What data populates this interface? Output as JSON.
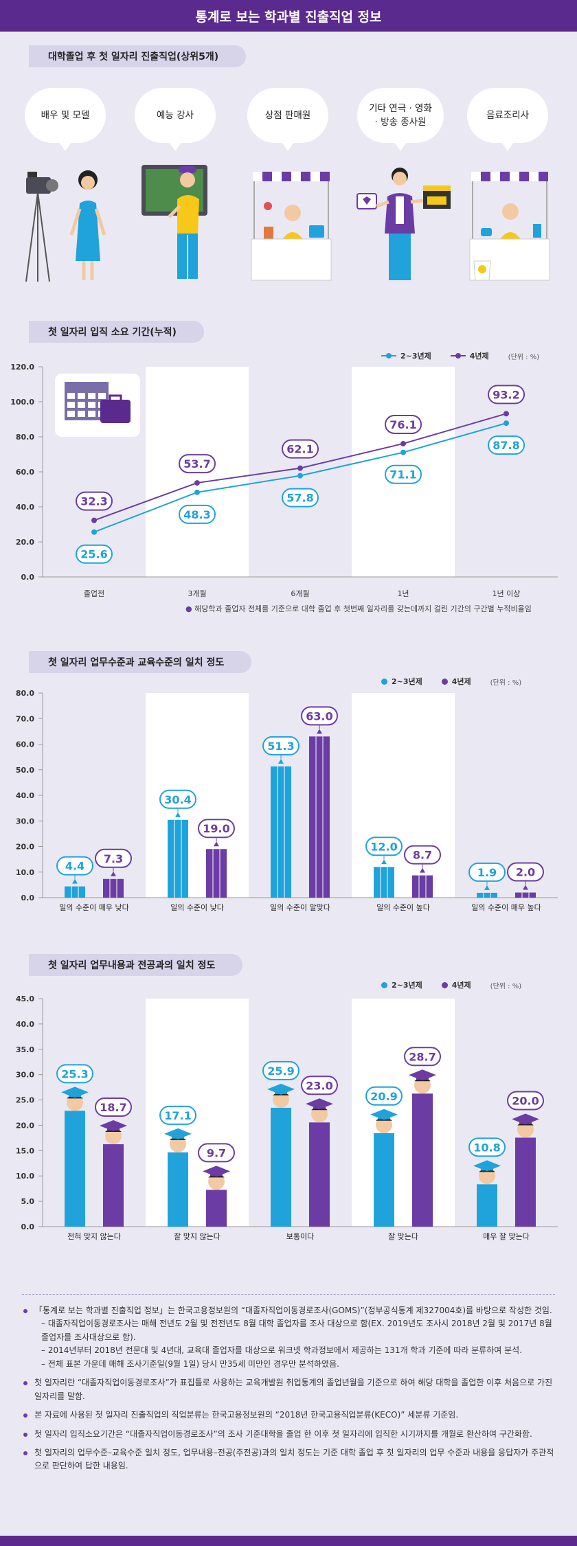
{
  "header": {
    "title": "통계로 보는 학과별 진출직업 정보"
  },
  "legend": {
    "series1": "2~3년제",
    "series2": "4년제",
    "unit": "(단위 : %)"
  },
  "colors": {
    "s1": "#1fa3da",
    "s2": "#6b3ca4",
    "bg": "#eae9f3",
    "band": "#ffffff",
    "accent": "#5b2a8f"
  },
  "section1": {
    "title": "대학졸업 후 첫 일자리 진출직업(상위5개)",
    "jobs": [
      {
        "label": "배우 및 모델",
        "icon": "actress-camera-icon"
      },
      {
        "label": "예능 강사",
        "icon": "teacher-board-icon"
      },
      {
        "label": "상점 판매원",
        "icon": "shop-clerk-icon"
      },
      {
        "label": "기타 연극 · 영화 · 방송 종사원",
        "icon": "broadcast-worker-icon"
      },
      {
        "label": "음료조리사",
        "icon": "barista-icon"
      }
    ]
  },
  "section2": {
    "title": "첫 일자리 입직 소요 기간(누적)",
    "note": "해당학과 졸업자 전체를 기준으로 대학 졸업 후 첫번째 일자리를 갖는데까지 걸린 기간의 구간별 누적비율임",
    "icon": "calendar-briefcase-icon"
  },
  "section3": {
    "title": "첫 일자리 업무수준과 교육수준의 일치 정도"
  },
  "section4": {
    "title": "첫 일자리 업무내용과 전공과의 일치 정도"
  },
  "chart_data": [
    {
      "type": "line",
      "categories": [
        "졸업전",
        "3개월",
        "6개월",
        "1년",
        "1년 이상"
      ],
      "series": [
        {
          "name": "2~3년제",
          "values": [
            25.6,
            48.3,
            57.8,
            71.1,
            87.8
          ]
        },
        {
          "name": "4년제",
          "values": [
            32.3,
            53.7,
            62.1,
            76.1,
            93.2
          ]
        }
      ],
      "yticks": [
        "0.0",
        "20.0",
        "40.0",
        "60.0",
        "80.0",
        "100.0",
        "120.0"
      ],
      "ylim": [
        0,
        120
      ],
      "legend": "top-right"
    },
    {
      "type": "bar",
      "categories": [
        "일의 수준이 매우 낮다",
        "일의 수준이 낮다",
        "일의 수준이 알맞다",
        "일의 수준이 높다",
        "일의 수준이 매우 높다"
      ],
      "series": [
        {
          "name": "2~3년제",
          "values": [
            4.4,
            30.4,
            51.3,
            12.0,
            1.9
          ]
        },
        {
          "name": "4년제",
          "values": [
            7.3,
            19.0,
            63.0,
            8.7,
            2.0
          ]
        }
      ],
      "yticks": [
        "0.0",
        "10.0",
        "20.0",
        "30.0",
        "40.0",
        "50.0",
        "60.0",
        "70.0",
        "80.0"
      ],
      "ylim": [
        0,
        80
      ],
      "legend": "top-right"
    },
    {
      "type": "bar",
      "categories": [
        "전혀 맞지 않는다",
        "잘 맞지 않는다",
        "보통이다",
        "잘 맞는다",
        "매우 잘 맞는다"
      ],
      "series": [
        {
          "name": "2~3년제",
          "values": [
            25.3,
            17.1,
            25.9,
            20.9,
            10.8
          ]
        },
        {
          "name": "4년제",
          "values": [
            18.7,
            9.7,
            23.0,
            28.7,
            20.0
          ]
        }
      ],
      "yticks": [
        "0.0",
        "5.0",
        "10.0",
        "15.0",
        "20.0",
        "25.0",
        "30.0",
        "35.0",
        "40.0",
        "45.0"
      ],
      "ylim": [
        0,
        45
      ],
      "legend": "top-right"
    }
  ],
  "footer": {
    "items": [
      {
        "text": "「통계로 보는 학과별 진출직업 정보」는 한국고용정보원의 “대졸자직업이동경로조사(GOMS)”(정부공식통계 제327004호)를 바탕으로 작성한 것임.",
        "subs": [
          "– 대졸자직업이동경로조사는 매해 전년도 2월 및 전전년도 8월 대학 졸업자를 조사 대상으로 함(EX. 2019년도 조사시 2018년 2월 및 2017년 8월 졸업자를 조사대상으로 함).",
          "– 2014년부터 2018년 전문대 및 4년대, 교육대 졸업자를 대상으로 워크넷 학과정보에서 제공하는 131개 학과 기준에 따라 분류하여 분석.",
          "– 전체 표본 가운데 매해 조사기준일(9월 1일) 당시 만35세 미만인 경우만 분석하였음."
        ]
      },
      {
        "text": "첫 일자리란 “대졸자직업이동경로조사”가 표집틀로 사용하는 교육개발원 취업통계의 졸업년월을 기준으로 하여 해당 대학을 졸업한 이후 처음으로 가진 일자리를 말함.",
        "subs": []
      },
      {
        "text": "본 자료에 사용된 첫 일자리 진출직업의 직업분류는 한국고용정보원의 “2018년 한국고용직업분류(KECO)” 세분류 기준임.",
        "subs": []
      },
      {
        "text": "첫 일자리 입직소요기간은 “대졸자직업이동경로조사”의 조사 기준대학을 졸업 한 이후 첫 일자리에 입직한 시기까지를 개월로 환산하여 구간화함.",
        "subs": []
      },
      {
        "text": "첫 일자리의 업무수준–교육수준 일치 정도, 업무내용–전공(주전공)과의 일치 정도는 기준 대학 졸업 후 첫 일자리의 업무 수준과 내용을 응답자가 주관적으로 판단하여 답한 내용임.",
        "subs": []
      }
    ]
  }
}
